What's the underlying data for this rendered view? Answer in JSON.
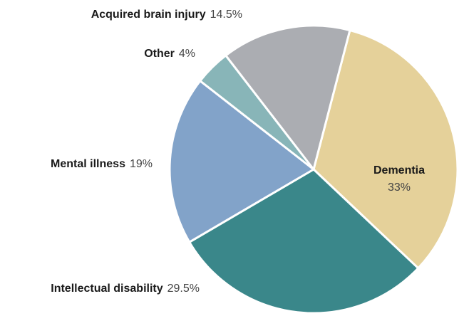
{
  "chart_data": {
    "type": "pie",
    "categories": [
      "Dementia",
      "Intellectual disability",
      "Mental illness",
      "Other",
      "Acquired brain injury"
    ],
    "values": [
      33,
      29.5,
      19,
      4,
      14.5
    ],
    "value_labels": [
      "33%",
      "29.5%",
      "19%",
      "4%",
      "14.5%"
    ],
    "colors": [
      "#e5d19a",
      "#3a878a",
      "#82a3c9",
      "#88b5b8",
      "#abadb2"
    ]
  }
}
